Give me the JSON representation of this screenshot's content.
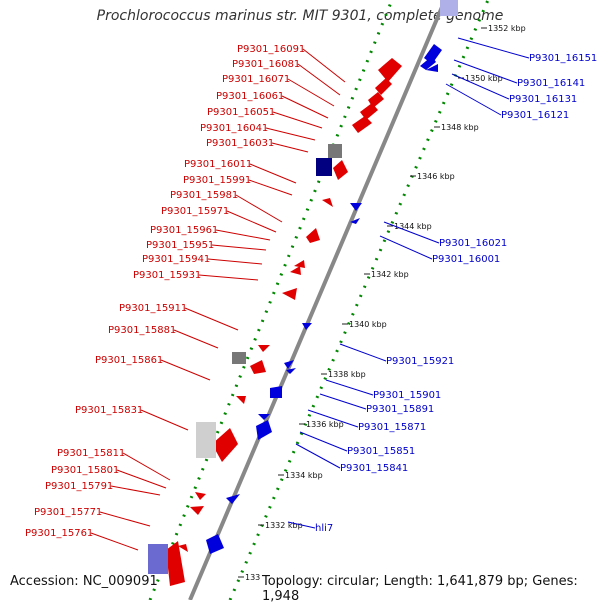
{
  "title": "Prochlorococcus marinus str. MIT 9301, complete genome",
  "footer": {
    "accession": "Accession: NC_009091",
    "topology": "Topology: circular; Length: 1,641,879 bp; Genes: 1,948"
  },
  "colors": {
    "forward_gene": "#e00000",
    "reverse_gene": "#0000dd",
    "forward_label": "#cc0000",
    "reverse_label": "#0000cc",
    "pseudo_gene": "#777777",
    "selected_gene": "#6a6ad0",
    "genome_axis": "#888888",
    "tick_green": "#008800"
  },
  "scale_ticks": [
    "1352 kbp",
    "1350 kbp",
    "1348 kbp",
    "1346 kbp",
    "1344 kbp",
    "1342 kbp",
    "1340 kbp",
    "1338 kbp",
    "1336 kbp",
    "1334 kbp",
    "1332 kbp",
    "133"
  ],
  "forward_labels": [
    "P9301_16091",
    "P9301_16081",
    "P9301_16071",
    "P9301_16061",
    "P9301_16051",
    "P9301_16041",
    "P9301_16031",
    "P9301_16011",
    "P9301_15991",
    "P9301_15981",
    "P9301_15971",
    "P9301_15961",
    "P9301_15951",
    "P9301_15941",
    "P9301_15931",
    "P9301_15911",
    "P9301_15881",
    "P9301_15861",
    "P9301_15831",
    "P9301_15811",
    "P9301_15801",
    "P9301_15791",
    "P9301_15771",
    "P9301_15761"
  ],
  "reverse_labels": [
    "P9301_16151",
    "P9301_16141",
    "P9301_16131",
    "P9301_16121",
    "P9301_16021",
    "P9301_16001",
    "P9301_15921",
    "P9301_15901",
    "P9301_15891",
    "P9301_15871",
    "P9301_15851",
    "P9301_15841",
    "hli7"
  ]
}
